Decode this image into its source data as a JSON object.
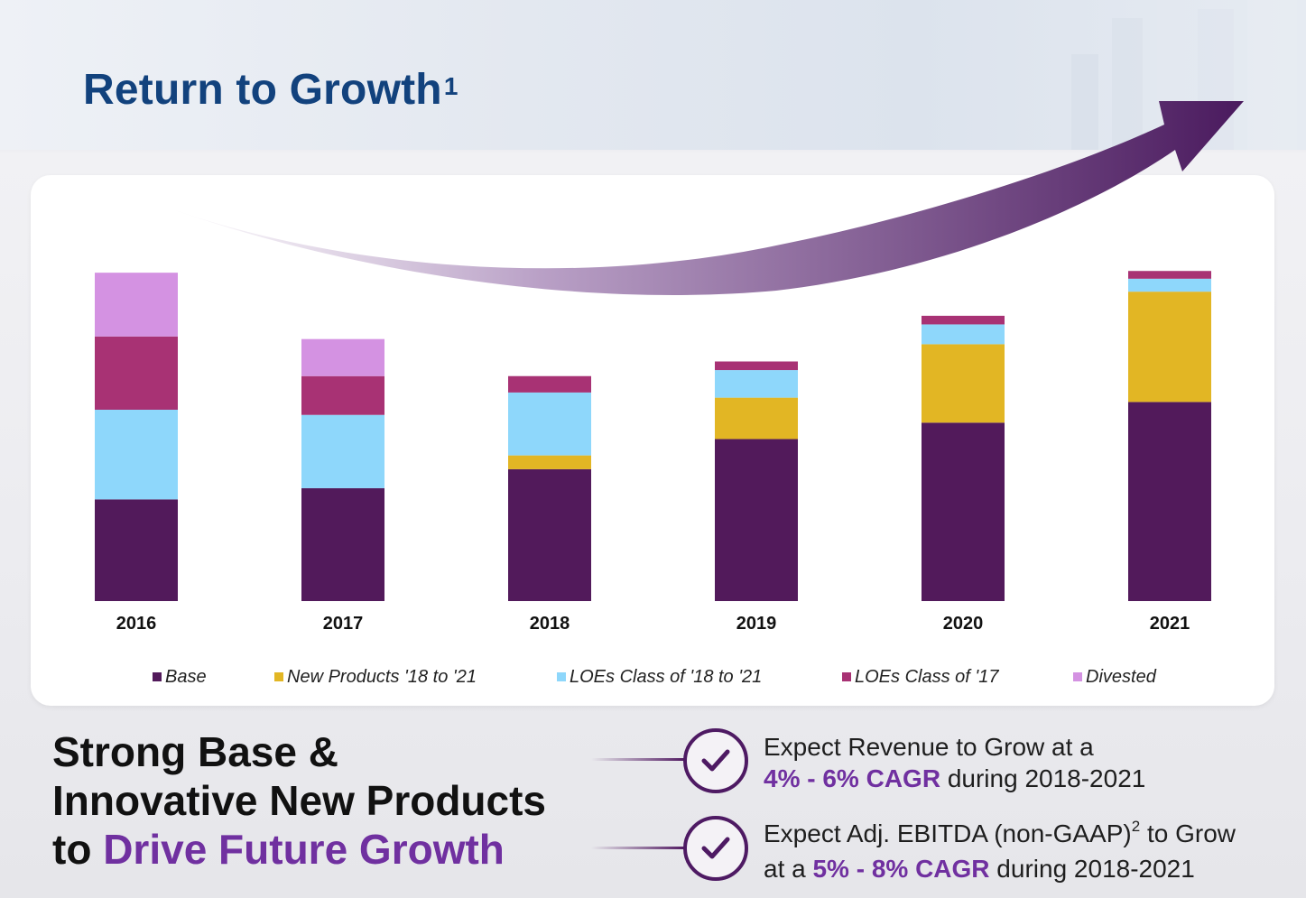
{
  "header": {
    "title": "Return to Growth",
    "title_sup": "1"
  },
  "chart_data": {
    "type": "bar",
    "stacked": true,
    "categories": [
      "2016",
      "2017",
      "2018",
      "2019",
      "2020",
      "2021"
    ],
    "series": [
      {
        "name": "Base",
        "color": "#521a5b",
        "values": [
          118,
          131,
          153,
          188,
          207,
          231
        ]
      },
      {
        "name": "New Products '18 to '21",
        "color": "#e2b624",
        "values": [
          0,
          0,
          16,
          48,
          91,
          128
        ]
      },
      {
        "name": "LOEs Class of '18 to '21",
        "color": "#8ed7fb",
        "values": [
          104,
          85,
          73,
          32,
          23,
          15
        ]
      },
      {
        "name": "LOEs Class of '17",
        "color": "#a83274",
        "values": [
          85,
          45,
          19,
          10,
          10,
          9
        ]
      },
      {
        "name": "Divested",
        "color": "#d492e2",
        "values": [
          74,
          43,
          0,
          0,
          0,
          0
        ]
      }
    ],
    "ylim": [
      0,
      400
    ],
    "axes_visible": false,
    "grid": false,
    "legend_position": "bottom",
    "annotation": "upward growth arrow"
  },
  "summary": {
    "line1": "Strong Base &",
    "line2": "Innovative New Products",
    "line3_prefix": "to ",
    "line3_accent": "Drive Future Growth"
  },
  "expectations": [
    {
      "line1": "Expect Revenue to Grow at a",
      "highlight": "4% - 6% CAGR",
      "line2_rest": " during 2018-2021"
    },
    {
      "line1_main": "Expect Adj. EBITDA (non-GAAP)",
      "line1_sup": "2",
      "line1_tail": " to Grow",
      "line2_prefix": "at a ",
      "highlight": "5% - 8% CAGR",
      "line2_rest": " during 2018-2021"
    }
  ],
  "colors": {
    "title": "#12427d",
    "accent": "#7030a0",
    "arrow": "#4a1a5e"
  }
}
